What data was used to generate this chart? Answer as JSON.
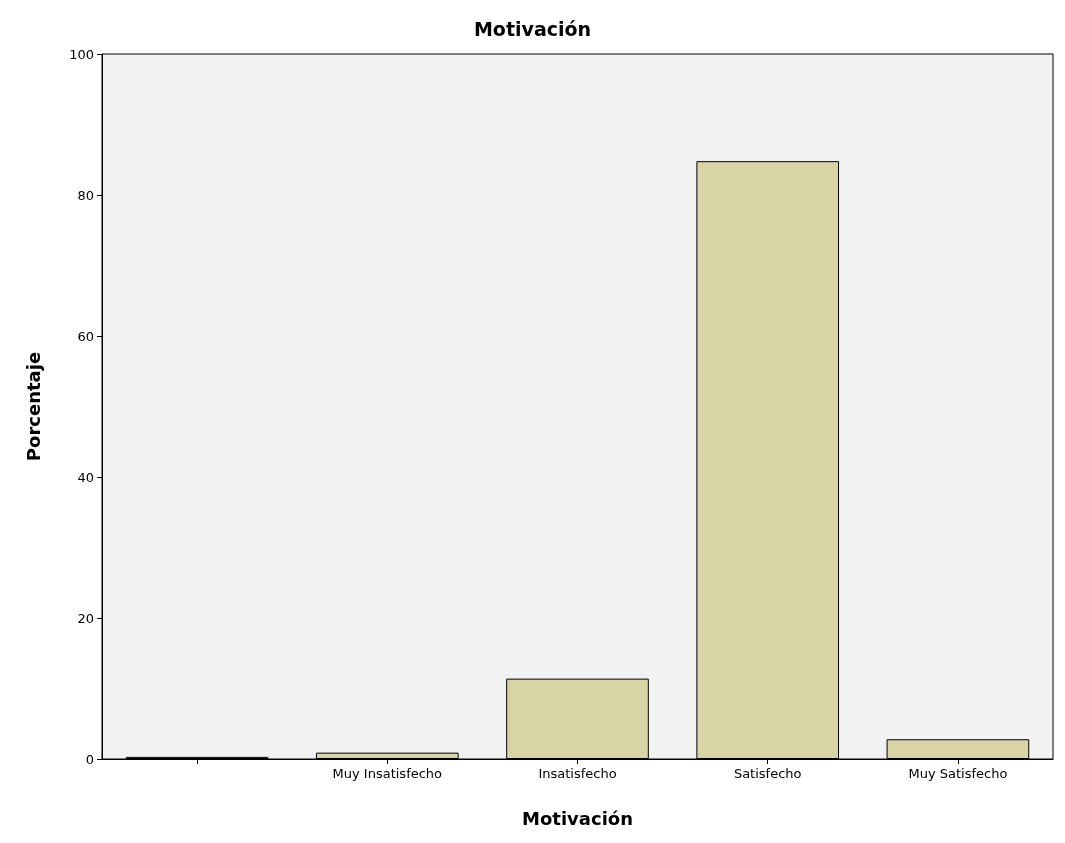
{
  "chart_data": {
    "type": "bar",
    "title": "Motivación",
    "xlabel": "Motivación",
    "ylabel": "Porcentaje",
    "categories": [
      null,
      "Muy Insatisfecho",
      "Insatisfecho",
      "Satisfecho",
      "Muy Satisfecho"
    ],
    "values": [
      0.3,
      0.9,
      11.4,
      84.8,
      2.8
    ],
    "color": "#d9d4a6",
    "ylim": [
      0,
      100
    ],
    "yticks": [
      0,
      20,
      40,
      60,
      80,
      100
    ],
    "grid": false
  }
}
